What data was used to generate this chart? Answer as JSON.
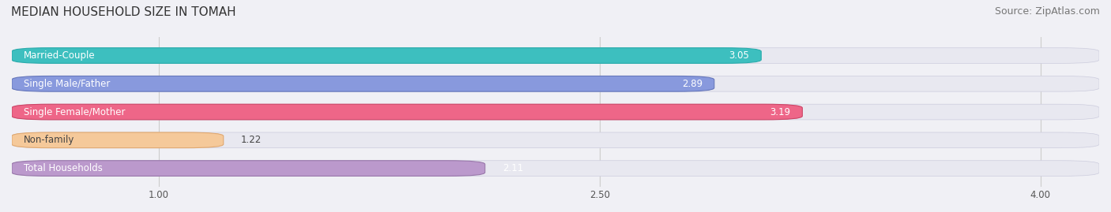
{
  "title": "MEDIAN HOUSEHOLD SIZE IN TOMAH",
  "source": "Source: ZipAtlas.com",
  "categories": [
    "Married-Couple",
    "Single Male/Father",
    "Single Female/Mother",
    "Non-family",
    "Total Households"
  ],
  "values": [
    3.05,
    2.89,
    3.19,
    1.22,
    2.11
  ],
  "bar_colors": [
    "#3dbfbf",
    "#8899dd",
    "#ee6688",
    "#f5c99a",
    "#bb99cc"
  ],
  "bar_edge_colors": [
    "#2aacac",
    "#6677bb",
    "#cc4466",
    "#e0a870",
    "#9977aa"
  ],
  "text_colors_label": [
    "white",
    "white",
    "white",
    "#444444",
    "white"
  ],
  "text_colors_value": [
    "white",
    "white",
    "white",
    "#444444",
    "white"
  ],
  "value_inside": [
    true,
    true,
    true,
    false,
    false
  ],
  "xlim": [
    0.5,
    4.2
  ],
  "xticks": [
    1.0,
    2.5,
    4.0
  ],
  "background_color": "#f0f0f5",
  "bar_background_color": "#e8e8f0",
  "title_fontsize": 11,
  "source_fontsize": 9,
  "label_fontsize": 8.5,
  "value_fontsize": 8.5,
  "tick_fontsize": 8.5,
  "bar_height": 0.55
}
